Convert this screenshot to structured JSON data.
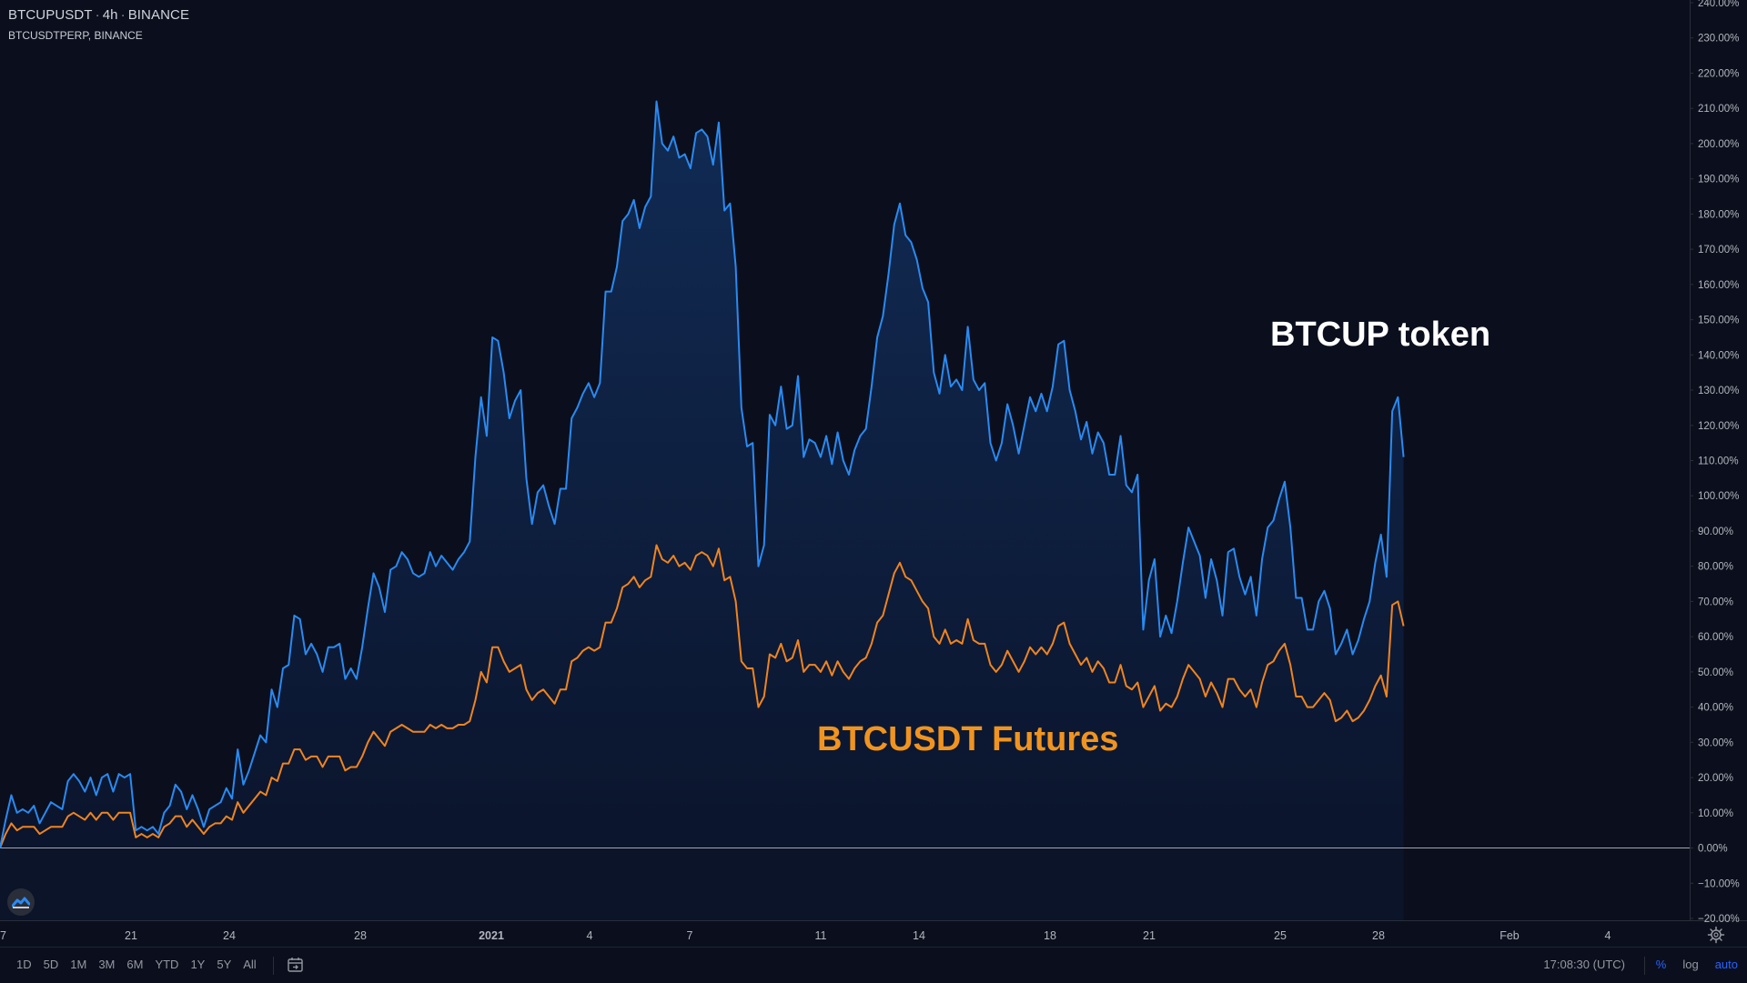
{
  "legend": {
    "symbol": "BTCUPUSDT",
    "interval": "4h",
    "exchange": "BINANCE",
    "compare": "BTCUSDTPERP, BINANCE"
  },
  "annotations": {
    "btcup": "BTCUP token",
    "futures": "BTCUSDT Futures"
  },
  "colors": {
    "background": "#0b0f1d",
    "btcup_line": "#2a8af0",
    "futures_line": "#f0841e",
    "futures_label": "#f0941f",
    "btcup_label": "#ffffff",
    "area_fill": "#0f2a55",
    "zero_line": "#c9ccd6",
    "accent": "#2962ff"
  },
  "chart_data": {
    "type": "line",
    "y_unit": "%",
    "ylim": [
      -20,
      240
    ],
    "y_ticks": [
      "240.00%",
      "230.00%",
      "220.00%",
      "210.00%",
      "200.00%",
      "190.00%",
      "180.00%",
      "170.00%",
      "160.00%",
      "150.00%",
      "140.00%",
      "130.00%",
      "120.00%",
      "110.00%",
      "100.00%",
      "90.00%",
      "80.00%",
      "70.00%",
      "60.00%",
      "50.00%",
      "40.00%",
      "30.00%",
      "20.00%",
      "10.00%",
      "0.00%",
      "−10.00%",
      "−20.00%"
    ],
    "x_ticks": [
      "7",
      "21",
      "24",
      "28",
      "2021",
      "4",
      "7",
      "11",
      "14",
      "18",
      "21",
      "25",
      "28",
      "Feb",
      "4"
    ],
    "series": [
      {
        "name": "BTCUPUSDT",
        "values": [
          0,
          8,
          15,
          10,
          11,
          10,
          12,
          7,
          10,
          13,
          12,
          11,
          19,
          21,
          19,
          16,
          20,
          15,
          20,
          21,
          16,
          21,
          20,
          21,
          5,
          6,
          5,
          6,
          4,
          10,
          12,
          18,
          16,
          11,
          15,
          11,
          6,
          11,
          12,
          13,
          17,
          14,
          28,
          18,
          22,
          27,
          32,
          30,
          45,
          40,
          51,
          52,
          66,
          65,
          55,
          58,
          55,
          50,
          57,
          57,
          58,
          48,
          51,
          48,
          57,
          68,
          78,
          74,
          67,
          79,
          80,
          84,
          82,
          78,
          77,
          78,
          84,
          80,
          83,
          81,
          79,
          82,
          84,
          87,
          111,
          128,
          117,
          145,
          144,
          135,
          122,
          127,
          130,
          105,
          92,
          101,
          103,
          97,
          92,
          102,
          102,
          122,
          125,
          129,
          132,
          128,
          132,
          158,
          158,
          165,
          178,
          180,
          184,
          176,
          182,
          185,
          212,
          200,
          198,
          202,
          196,
          197,
          193,
          203,
          204,
          202,
          194,
          206,
          181,
          183,
          165,
          125,
          114,
          115,
          80,
          86,
          123,
          120,
          131,
          119,
          120,
          134,
          111,
          116,
          115,
          111,
          117,
          109,
          118,
          110,
          106,
          113,
          117,
          119,
          131,
          145,
          151,
          163,
          177,
          183,
          174,
          172,
          167,
          159,
          155,
          135,
          129,
          140,
          131,
          133,
          130,
          148,
          133,
          130,
          132,
          115,
          110,
          115,
          126,
          120,
          112,
          120,
          128,
          124,
          129,
          124,
          131,
          143,
          144,
          130,
          124,
          116,
          121,
          112,
          118,
          115,
          106,
          106,
          117,
          103,
          101,
          106,
          62,
          76,
          82,
          60,
          66,
          61,
          70,
          81,
          91,
          87,
          83,
          71,
          82,
          76,
          66,
          84,
          85,
          77,
          72,
          77,
          66,
          82,
          91,
          93,
          99,
          104,
          91,
          71,
          71,
          62,
          62,
          70,
          73,
          68,
          55,
          58,
          62,
          55,
          59,
          65,
          70,
          81,
          89,
          77,
          124,
          128,
          111
        ],
        "color": "#2a8af0"
      },
      {
        "name": "BTCUSDTPERP",
        "values": [
          0,
          4,
          7,
          5,
          6,
          6,
          6,
          4,
          5,
          6,
          6,
          6,
          9,
          10,
          9,
          8,
          10,
          8,
          10,
          10,
          8,
          10,
          10,
          10,
          3,
          4,
          3,
          4,
          3,
          6,
          7,
          9,
          9,
          6,
          8,
          6,
          4,
          6,
          7,
          7,
          9,
          8,
          13,
          10,
          12,
          14,
          16,
          15,
          20,
          19,
          24,
          24,
          28,
          28,
          25,
          26,
          26,
          23,
          26,
          26,
          26,
          22,
          23,
          23,
          26,
          30,
          33,
          31,
          29,
          33,
          34,
          35,
          34,
          33,
          33,
          33,
          35,
          34,
          35,
          34,
          34,
          35,
          35,
          36,
          42,
          50,
          47,
          57,
          57,
          53,
          50,
          51,
          52,
          45,
          42,
          44,
          45,
          43,
          41,
          45,
          45,
          53,
          54,
          56,
          57,
          56,
          57,
          64,
          64,
          68,
          74,
          75,
          77,
          74,
          76,
          77,
          86,
          82,
          81,
          83,
          80,
          81,
          79,
          83,
          84,
          83,
          80,
          85,
          76,
          77,
          70,
          53,
          51,
          51,
          40,
          43,
          55,
          54,
          58,
          53,
          54,
          59,
          50,
          52,
          52,
          50,
          53,
          49,
          53,
          50,
          48,
          51,
          53,
          54,
          58,
          64,
          66,
          72,
          78,
          81,
          77,
          76,
          73,
          70,
          68,
          60,
          58,
          62,
          58,
          59,
          58,
          65,
          59,
          58,
          58,
          52,
          50,
          52,
          56,
          53,
          50,
          53,
          57,
          55,
          57,
          55,
          58,
          63,
          64,
          58,
          55,
          52,
          54,
          50,
          53,
          51,
          47,
          47,
          52,
          46,
          45,
          47,
          40,
          43,
          46,
          39,
          41,
          40,
          43,
          48,
          52,
          50,
          48,
          43,
          47,
          44,
          40,
          48,
          48,
          45,
          43,
          45,
          40,
          47,
          52,
          53,
          56,
          58,
          52,
          43,
          43,
          40,
          40,
          42,
          44,
          42,
          36,
          37,
          39,
          36,
          37,
          39,
          42,
          46,
          49,
          43,
          69,
          70,
          63
        ],
        "color": "#f0841e"
      }
    ],
    "grid": false,
    "legend_position": "top-left"
  },
  "bottom_bar": {
    "ranges": [
      "1D",
      "5D",
      "1M",
      "3M",
      "6M",
      "YTD",
      "1Y",
      "5Y",
      "All"
    ],
    "clock": "17:08:30 (UTC)",
    "scale_percent": "%",
    "scale_log": "log",
    "scale_auto": "auto",
    "icons": [
      "calendar-goto-icon",
      "settings-gear-icon",
      "tradingview-logo-icon"
    ]
  }
}
